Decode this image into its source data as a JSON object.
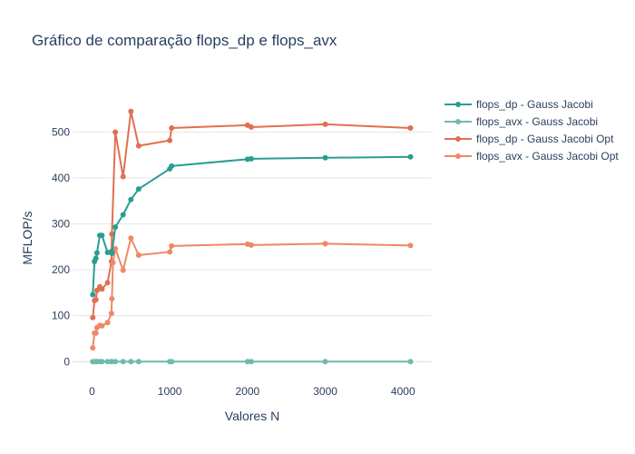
{
  "chart_data": {
    "type": "line",
    "title": "Gráfico de comparação flops_dp e flops_avx",
    "xlabel": "Valores N",
    "ylabel": "MFLOP/s",
    "xlim": [
      -250,
      4370
    ],
    "ylim": [
      -43,
      590
    ],
    "xticks": [
      0,
      1000,
      2000,
      3000,
      4000
    ],
    "xtick_labels": [
      "0",
      "1000",
      "2000",
      "3000",
      "4000"
    ],
    "yticks": [
      0,
      100,
      200,
      300,
      400,
      500
    ],
    "ytick_labels": [
      "0",
      "100",
      "200",
      "300",
      "400",
      "500"
    ],
    "grid": true,
    "legend_position": "top-right",
    "series": [
      {
        "name": "flops_dp - Gauss Jacobi",
        "color": "#2a9d8f",
        "x": [
          10,
          32,
          50,
          64,
          100,
          128,
          200,
          250,
          256,
          300,
          400,
          500,
          600,
          1000,
          1024,
          2000,
          2048,
          3000,
          4096
        ],
        "y": [
          146,
          218,
          225,
          237,
          275,
          275,
          238,
          240,
          236,
          293,
          320,
          353,
          376,
          420,
          426,
          441,
          442,
          444,
          446
        ]
      },
      {
        "name": "flops_avx - Gauss Jacobi",
        "color": "#6cbbad",
        "x": [
          10,
          32,
          50,
          64,
          100,
          128,
          200,
          250,
          256,
          300,
          400,
          500,
          600,
          1000,
          1024,
          2000,
          2048,
          3000,
          4096
        ],
        "y": [
          0,
          0,
          0,
          0,
          0,
          0,
          0,
          0,
          0,
          0,
          0,
          0,
          0,
          0,
          0,
          0,
          0,
          0,
          0
        ]
      },
      {
        "name": "flops_dp - Gauss Jacobi Opt",
        "color": "#e07050",
        "x": [
          10,
          32,
          50,
          64,
          100,
          128,
          200,
          250,
          256,
          300,
          400,
          500,
          600,
          1000,
          1024,
          2000,
          2048,
          3000,
          4096
        ],
        "y": [
          96,
          133,
          135,
          155,
          163,
          158,
          172,
          218,
          278,
          500,
          403,
          545,
          470,
          482,
          509,
          515,
          511,
          517,
          509
        ]
      },
      {
        "name": "flops_avx - Gauss Jacobi Opt",
        "color": "#ee8866",
        "x": [
          10,
          32,
          50,
          64,
          100,
          128,
          200,
          250,
          256,
          270,
          300,
          400,
          500,
          600,
          1000,
          1024,
          2000,
          2048,
          3000,
          4096
        ],
        "y": [
          30,
          62,
          62,
          74,
          79,
          78,
          85,
          105,
          137,
          216,
          246,
          199,
          269,
          232,
          239,
          252,
          256,
          254,
          257,
          253
        ]
      }
    ]
  }
}
